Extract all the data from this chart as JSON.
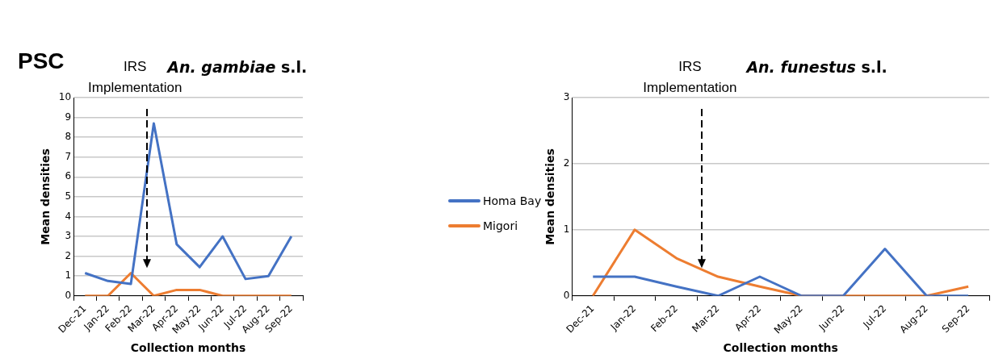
{
  "chart_data": [
    {
      "type": "line",
      "title": "An. gambiae s.l.",
      "xlabel": "Collection months",
      "ylabel": "Mean densities",
      "categories": [
        "Dec-21",
        "Jan-22",
        "Feb-22",
        "Mar-22",
        "Apr-22",
        "May-22",
        "Jun-22",
        "Jul-22",
        "Aug-22",
        "Sep-22"
      ],
      "series": [
        {
          "name": "Homa Bay",
          "color": "#4472c4",
          "values": [
            1.15,
            0.75,
            0.6,
            8.7,
            2.6,
            1.45,
            3.0,
            0.85,
            1.0,
            3.0
          ]
        },
        {
          "name": "Migori",
          "color": "#ed7d31",
          "values": [
            0,
            0,
            1.15,
            0,
            0.3,
            0.3,
            0,
            0,
            0,
            0
          ]
        }
      ],
      "ylim": [
        0,
        10
      ],
      "yticks": [
        0,
        1,
        2,
        3,
        4,
        5,
        6,
        7,
        8,
        9,
        10
      ],
      "grid": "y",
      "legend": "right",
      "marker": "none",
      "annotations": [
        "PSC",
        "IRS Implementation"
      ]
    },
    {
      "type": "line",
      "title": "An. funestus s.l.",
      "xlabel": "Collection months",
      "ylabel": "Mean densities",
      "categories": [
        "Dec-21",
        "Jan-22",
        "Feb-22",
        "Mar-22",
        "Apr-22",
        "May-22",
        "Jun-22",
        "Jul-22",
        "Aug-22",
        "Sep-22"
      ],
      "series": [
        {
          "color": "#4472c4",
          "values": [
            0.29,
            0.29,
            0.14,
            0,
            0.29,
            0,
            0,
            0.71,
            0,
            0
          ]
        },
        {
          "color": "#ed7d31",
          "values": [
            0,
            1,
            0.57,
            0.29,
            0.14,
            0,
            0,
            0,
            0,
            0.14
          ]
        }
      ],
      "ylim": [
        0,
        3
      ],
      "yticks": [
        0,
        1,
        2,
        3
      ],
      "grid": "y",
      "legend": false,
      "marker": "none",
      "annotations": [
        "IRS Implementation"
      ]
    }
  ]
}
